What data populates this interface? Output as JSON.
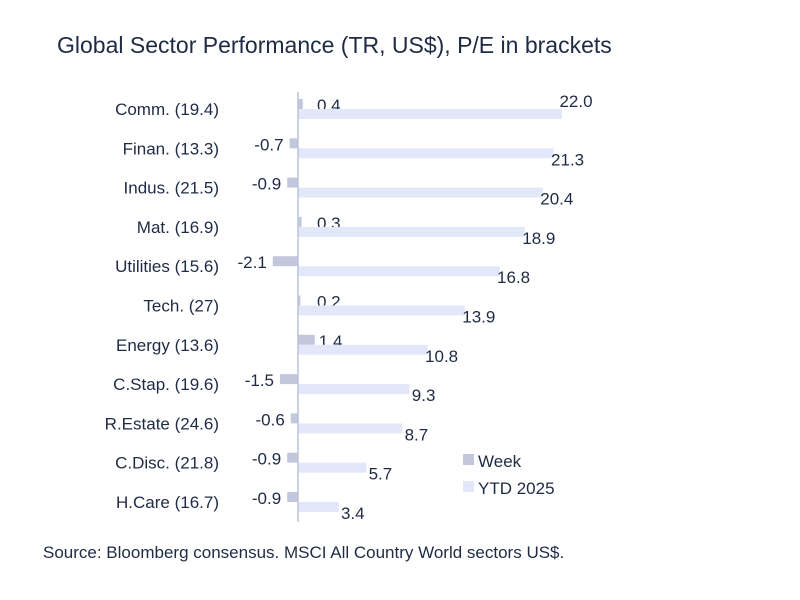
{
  "chart_data": {
    "type": "bar",
    "orientation": "horizontal",
    "title": "Global Sector Performance (TR, US$), P/E in brackets",
    "categories": [
      "Comm. (19.4)",
      "Finan. (13.3)",
      "Indus. (21.5)",
      "Mat. (16.9)",
      "Utilities (15.6)",
      "Tech. (27)",
      "Energy (13.6)",
      "C.Stap. (19.6)",
      "R.Estate (24.6)",
      "C.Disc. (21.8)",
      "H.Care (16.7)"
    ],
    "series": [
      {
        "name": "Week",
        "values": [
          0.4,
          -0.7,
          -0.9,
          0.3,
          -2.1,
          0.2,
          1.4,
          -1.5,
          -0.6,
          -0.9,
          -0.9
        ],
        "labels": [
          "0.4",
          "-0.7",
          "-0.9",
          "0.3",
          "-2.1",
          "0.2",
          "1.4",
          "-1.5",
          "-0.6",
          "-0.9",
          "-0.9"
        ]
      },
      {
        "name": "YTD 2025",
        "values": [
          22.0,
          21.3,
          20.4,
          18.9,
          16.8,
          13.9,
          10.8,
          9.3,
          8.7,
          5.7,
          3.4
        ],
        "labels": [
          "22.0",
          "21.3",
          "20.4",
          "18.9",
          "16.8",
          "13.9",
          "10.8",
          "9.3",
          "8.7",
          "5.7",
          "3.4"
        ]
      }
    ],
    "legend": "bottom-right",
    "grid": false
  },
  "colors": {
    "week": "#c3c7de",
    "ytd": "#e2e8fa",
    "axis": "#b9c3dc",
    "text": "#1f2a44"
  },
  "source": "Source: Bloomberg consensus. MSCI All Country World sectors US$."
}
